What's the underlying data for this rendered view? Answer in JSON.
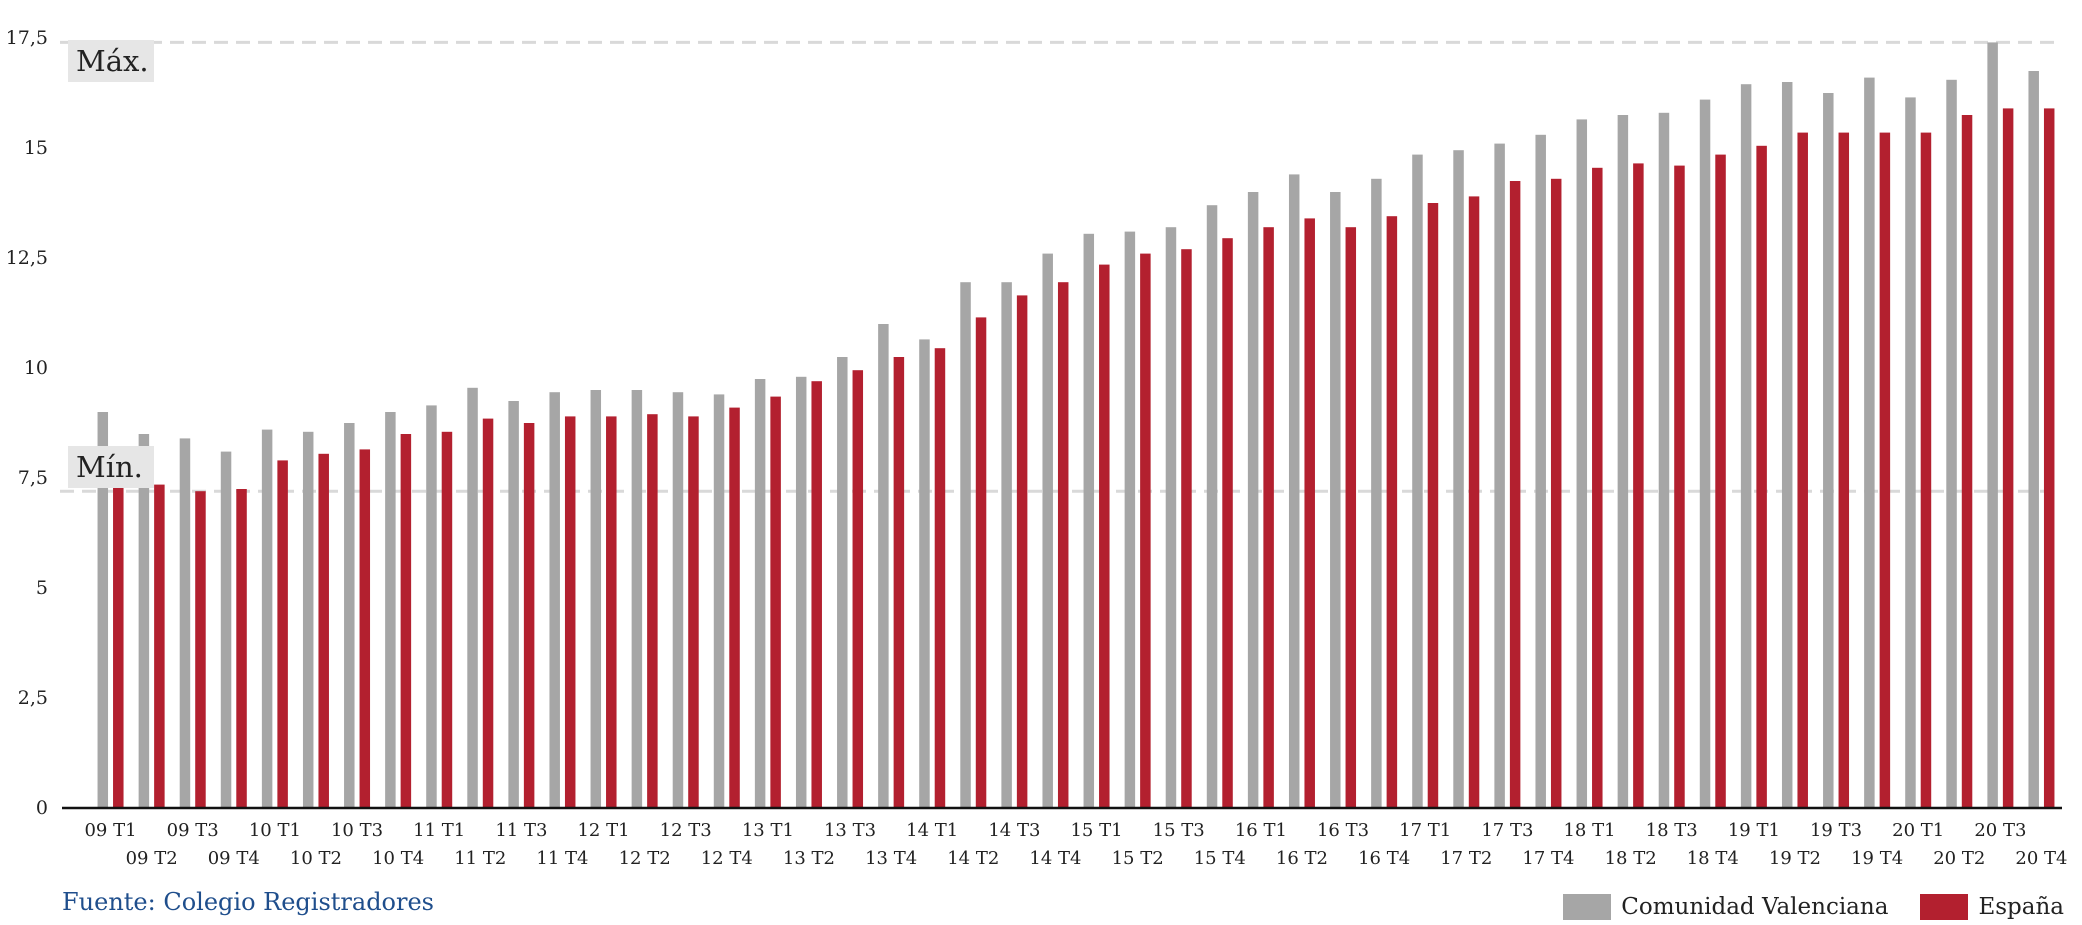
{
  "chart_data": {
    "type": "bar",
    "categories": [
      "09 T1",
      "09 T2",
      "09 T3",
      "09 T4",
      "10 T1",
      "10 T2",
      "10 T3",
      "10 T4",
      "11 T1",
      "11 T2",
      "11 T3",
      "11 T4",
      "12 T1",
      "12 T2",
      "12 T3",
      "12 T4",
      "13 T1",
      "13 T2",
      "13 T3",
      "13 T4",
      "14 T1",
      "14 T2",
      "14 T3",
      "14 T4",
      "15 T1",
      "15 T2",
      "15 T3",
      "15 T4",
      "16 T1",
      "16 T2",
      "16 T3",
      "16 T4",
      "17 T1",
      "17 T2",
      "17 T3",
      "17 T4",
      "18 T1",
      "18 T2",
      "18 T3",
      "18 T4",
      "19 T1",
      "19 T2",
      "19 T3",
      "19 T4",
      "20 T1",
      "20 T2",
      "20 T3",
      "20 T4"
    ],
    "series": [
      {
        "name": "Comunidad Valenciana",
        "color": "#a6a6a6",
        "values": [
          9.0,
          8.5,
          8.4,
          8.1,
          8.6,
          8.55,
          8.75,
          9.0,
          9.15,
          9.55,
          9.25,
          9.45,
          9.5,
          9.5,
          9.45,
          9.4,
          9.75,
          9.8,
          10.25,
          11.0,
          10.65,
          11.95,
          11.95,
          12.6,
          13.05,
          13.1,
          13.2,
          13.7,
          14.0,
          14.4,
          14.0,
          14.3,
          14.85,
          14.95,
          15.1,
          15.3,
          15.65,
          15.75,
          15.8,
          16.1,
          16.45,
          16.5,
          16.25,
          16.6,
          16.15,
          16.55,
          17.4,
          16.75
        ]
      },
      {
        "name": "España",
        "color": "#b3202f",
        "values": [
          7.5,
          7.35,
          7.2,
          7.25,
          7.9,
          8.05,
          8.15,
          8.5,
          8.55,
          8.85,
          8.75,
          8.9,
          8.9,
          8.95,
          8.9,
          9.1,
          9.35,
          9.7,
          9.95,
          10.25,
          10.45,
          11.15,
          11.65,
          11.95,
          12.35,
          12.6,
          12.7,
          12.95,
          13.2,
          13.4,
          13.2,
          13.45,
          13.75,
          13.9,
          14.25,
          14.3,
          14.55,
          14.65,
          14.6,
          14.85,
          15.05,
          15.35,
          15.35,
          15.35,
          15.35,
          15.75,
          15.9,
          15.9
        ]
      }
    ],
    "ylim": [
      0,
      17.5
    ],
    "yticks": [
      0,
      2.5,
      5,
      7.5,
      10,
      12.5,
      15,
      17.5
    ],
    "ytick_labels": [
      "0",
      "2,5",
      "5",
      "7,5",
      "10",
      "12,5",
      "15",
      "17,5"
    ],
    "grid": false,
    "legend": "bottom-right",
    "annotations": {
      "max": {
        "label": "Máx.",
        "value": 17.4
      },
      "min": {
        "label": "Mín.",
        "value": 7.2
      }
    }
  },
  "source_text": "Fuente: Colegio Registradores",
  "legend_labels": [
    "Comunidad Valenciana",
    "España"
  ],
  "colors": {
    "cv": "#a6a6a6",
    "es": "#b3202f",
    "source": "#1f4e8c",
    "refline": "#d9d9d9",
    "refbox": "#e6e6e6"
  }
}
